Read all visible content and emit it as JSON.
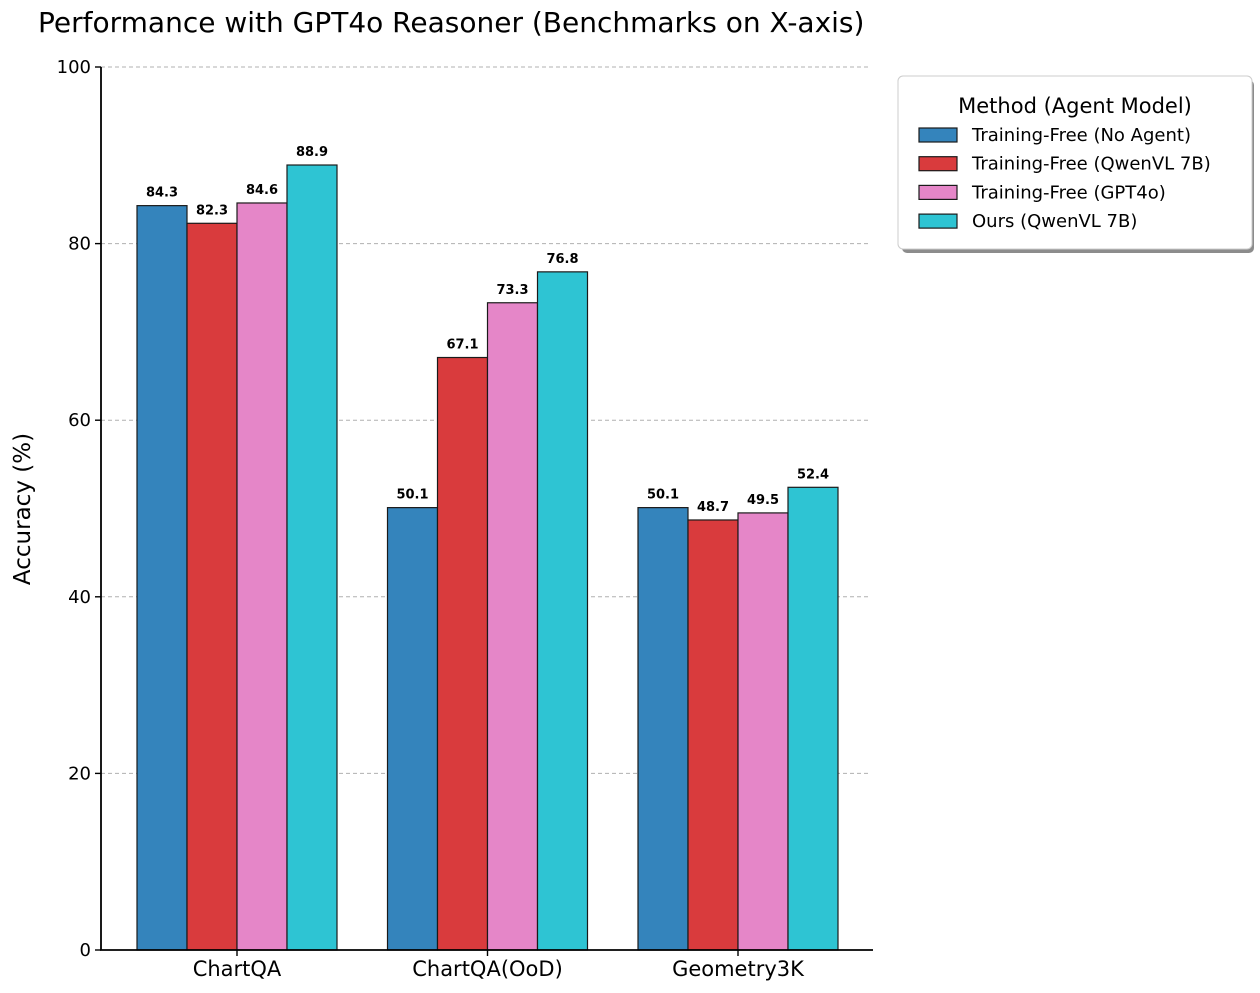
{
  "chart_data": {
    "type": "bar",
    "title": "Performance with GPT4o Reasoner (Benchmarks on X-axis)",
    "xlabel": "",
    "ylabel": "Accuracy (%)",
    "ylim": [
      0,
      100
    ],
    "yticks": [
      0,
      20,
      40,
      60,
      80,
      100
    ],
    "grid": "y-dashed",
    "categories": [
      "ChartQA",
      "ChartQA(OoD)",
      "Geometry3K"
    ],
    "legend": {
      "title": "Method (Agent Model)",
      "placement": "outside-top-right"
    },
    "series": [
      {
        "name": "Training-Free (No Agent)",
        "color": "#3484bc",
        "values": [
          84.3,
          50.1,
          50.1
        ]
      },
      {
        "name": "Training-Free (QwenVL 7B)",
        "color": "#d93b3d",
        "values": [
          82.3,
          67.1,
          48.7
        ]
      },
      {
        "name": "Training-Free (GPT4o)",
        "color": "#e586c8",
        "values": [
          84.6,
          73.3,
          49.5
        ]
      },
      {
        "name": "Ours (QwenVL 7B)",
        "color": "#2ec4d3",
        "values": [
          88.9,
          76.8,
          52.4
        ]
      }
    ]
  }
}
